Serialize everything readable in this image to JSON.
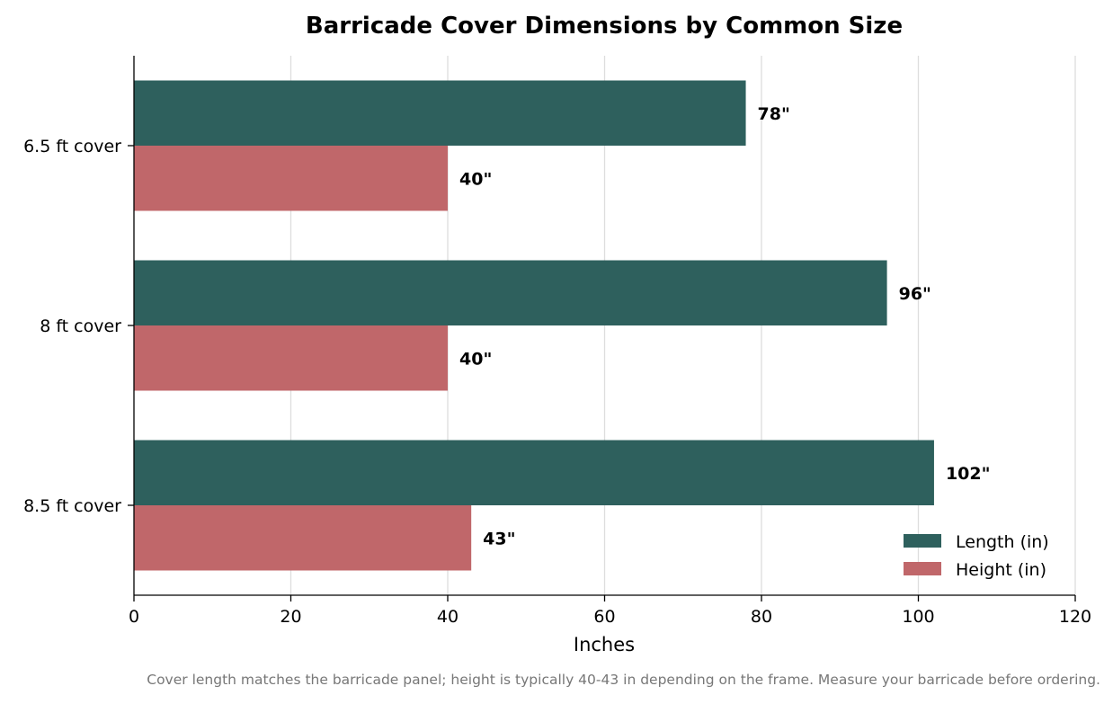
{
  "chart_data": {
    "type": "bar",
    "orientation": "horizontal",
    "title": "Barricade Cover Dimensions by Common Size",
    "categories": [
      "6.5 ft cover",
      "8 ft cover",
      "8.5 ft cover"
    ],
    "series": [
      {
        "name": "Length (in)",
        "values": [
          78,
          96,
          102
        ],
        "labels": [
          "78\"",
          "96\"",
          "102\""
        ],
        "color": "#2e605d"
      },
      {
        "name": "Height (in)",
        "values": [
          40,
          40,
          43
        ],
        "labels": [
          "40\"",
          "40\"",
          "43\""
        ],
        "color": "#c0676a"
      }
    ],
    "xlabel": "Inches",
    "ylabel": "",
    "xlim": [
      0,
      120
    ],
    "xticks": [
      0,
      20,
      40,
      60,
      80,
      100,
      120
    ],
    "grid": "vertical",
    "legend_position": "bottom-right"
  },
  "footnote": "Cover length matches the barricade panel; height is typically 40-43 in depending on the frame. Measure your barricade before ordering."
}
